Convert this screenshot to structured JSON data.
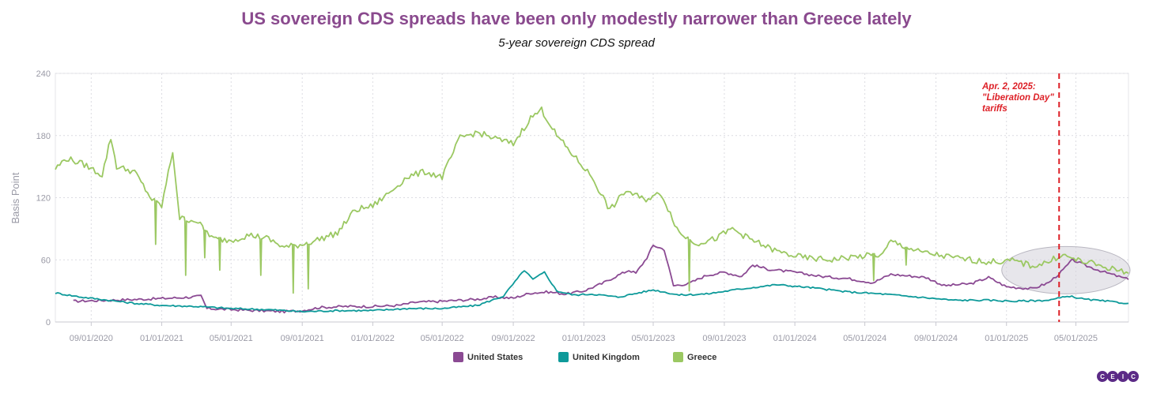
{
  "chart_data": {
    "type": "line",
    "title": "US sovereign CDS spreads have been only modestly narrower than Greece lately",
    "subtitle": "5-year sovereign CDS spread",
    "xlabel": "",
    "ylabel": "Basis Point",
    "ylim": [
      0,
      240
    ],
    "yticks": [
      0,
      60,
      120,
      180,
      240
    ],
    "xlim": [
      "2020-07-01",
      "2025-07-31"
    ],
    "xticks": [
      "09/01/2020",
      "01/01/2021",
      "05/01/2021",
      "09/01/2021",
      "01/01/2022",
      "05/01/2022",
      "09/01/2022",
      "01/01/2023",
      "05/01/2023",
      "09/01/2023",
      "01/01/2024",
      "05/01/2024",
      "09/01/2024",
      "01/01/2025",
      "05/01/2025"
    ],
    "grid": true,
    "legend_position": "bottom-center",
    "annotation": {
      "date": "2025-04-02",
      "lines": [
        "Apr. 2, 2025:",
        "\"Liberation Day\"",
        "tariffs"
      ],
      "color": "#dd1f26"
    },
    "series": [
      {
        "name": "United States",
        "color": "#8b4a93",
        "points": [
          [
            "2020-08-01",
            20
          ],
          [
            "2020-10-01",
            21
          ],
          [
            "2020-12-01",
            22
          ],
          [
            "2021-01-15",
            23
          ],
          [
            "2021-02-20",
            24
          ],
          [
            "2021-03-10",
            25
          ],
          [
            "2021-03-20",
            13
          ],
          [
            "2021-05-01",
            12
          ],
          [
            "2021-06-15",
            11
          ],
          [
            "2021-08-01",
            10
          ],
          [
            "2021-09-01",
            11
          ],
          [
            "2021-10-01",
            14
          ],
          [
            "2021-11-15",
            15
          ],
          [
            "2022-01-01",
            15
          ],
          [
            "2022-02-15",
            16
          ],
          [
            "2022-03-15",
            19
          ],
          [
            "2022-05-01",
            20
          ],
          [
            "2022-07-01",
            22
          ],
          [
            "2022-08-01",
            24
          ],
          [
            "2022-09-01",
            23
          ],
          [
            "2022-10-01",
            28
          ],
          [
            "2022-11-01",
            29
          ],
          [
            "2022-12-01",
            27
          ],
          [
            "2023-01-01",
            30
          ],
          [
            "2023-02-01",
            37
          ],
          [
            "2023-03-01",
            45
          ],
          [
            "2023-03-20",
            50
          ],
          [
            "2023-04-01",
            47
          ],
          [
            "2023-04-20",
            62
          ],
          [
            "2023-05-01",
            74
          ],
          [
            "2023-05-20",
            70
          ],
          [
            "2023-06-05",
            35
          ],
          [
            "2023-07-01",
            37
          ],
          [
            "2023-08-01",
            45
          ],
          [
            "2023-09-01",
            48
          ],
          [
            "2023-10-01",
            44
          ],
          [
            "2023-10-20",
            55
          ],
          [
            "2023-11-15",
            51
          ],
          [
            "2024-01-01",
            48
          ],
          [
            "2024-02-15",
            44
          ],
          [
            "2024-04-01",
            42
          ],
          [
            "2024-05-15",
            38
          ],
          [
            "2024-06-15",
            46
          ],
          [
            "2024-08-15",
            43
          ],
          [
            "2024-09-15",
            35
          ],
          [
            "2024-11-01",
            37
          ],
          [
            "2024-12-01",
            43
          ],
          [
            "2025-01-01",
            34
          ],
          [
            "2025-02-15",
            32
          ],
          [
            "2025-03-15",
            38
          ],
          [
            "2025-04-05",
            48
          ],
          [
            "2025-04-25",
            60
          ],
          [
            "2025-05-20",
            54
          ],
          [
            "2025-06-20",
            48
          ],
          [
            "2025-07-31",
            41
          ]
        ]
      },
      {
        "name": "United Kingdom",
        "color": "#0e9a9a",
        "points": [
          [
            "2020-07-01",
            28
          ],
          [
            "2020-08-15",
            24
          ],
          [
            "2020-10-01",
            21
          ],
          [
            "2020-11-15",
            18
          ],
          [
            "2021-01-01",
            16
          ],
          [
            "2021-03-01",
            15
          ],
          [
            "2021-05-01",
            13
          ],
          [
            "2021-07-01",
            12
          ],
          [
            "2021-09-01",
            10
          ],
          [
            "2021-11-01",
            11
          ],
          [
            "2022-01-01",
            11
          ],
          [
            "2022-03-01",
            13
          ],
          [
            "2022-05-01",
            13
          ],
          [
            "2022-07-01",
            16
          ],
          [
            "2022-08-15",
            25
          ],
          [
            "2022-09-20",
            50
          ],
          [
            "2022-10-05",
            41
          ],
          [
            "2022-10-25",
            48
          ],
          [
            "2022-11-15",
            30
          ],
          [
            "2022-12-15",
            26
          ],
          [
            "2023-01-15",
            27
          ],
          [
            "2023-03-01",
            24
          ],
          [
            "2023-05-01",
            31
          ],
          [
            "2023-06-15",
            26
          ],
          [
            "2023-08-01",
            27
          ],
          [
            "2023-10-01",
            32
          ],
          [
            "2023-12-01",
            36
          ],
          [
            "2024-02-01",
            33
          ],
          [
            "2024-04-01",
            29
          ],
          [
            "2024-06-01",
            27
          ],
          [
            "2024-08-01",
            24
          ],
          [
            "2024-10-01",
            21
          ],
          [
            "2024-12-01",
            21
          ],
          [
            "2025-01-15",
            20
          ],
          [
            "2025-03-15",
            21
          ],
          [
            "2025-04-20",
            25
          ],
          [
            "2025-05-15",
            22
          ],
          [
            "2025-07-31",
            18
          ]
        ]
      },
      {
        "name": "Greece",
        "color": "#9bc862",
        "points": [
          [
            "2020-07-01",
            148
          ],
          [
            "2020-07-20",
            158
          ],
          [
            "2020-08-20",
            152
          ],
          [
            "2020-09-20",
            142
          ],
          [
            "2020-10-05",
            178
          ],
          [
            "2020-10-15",
            150
          ],
          [
            "2020-11-15",
            145
          ],
          [
            "2020-12-15",
            118
          ],
          [
            "2021-01-01",
            112
          ],
          [
            "2021-01-20",
            165
          ],
          [
            "2021-02-01",
            100
          ],
          [
            "2021-03-01",
            98
          ],
          [
            "2021-04-01",
            80
          ],
          [
            "2021-05-01",
            79
          ],
          [
            "2021-06-01",
            84
          ],
          [
            "2021-07-01",
            81
          ],
          [
            "2021-08-01",
            72
          ],
          [
            "2021-09-01",
            75
          ],
          [
            "2021-10-01",
            80
          ],
          [
            "2021-11-01",
            86
          ],
          [
            "2021-12-01",
            108
          ],
          [
            "2022-01-01",
            112
          ],
          [
            "2022-02-01",
            126
          ],
          [
            "2022-03-01",
            140
          ],
          [
            "2022-04-01",
            145
          ],
          [
            "2022-05-01",
            140
          ],
          [
            "2022-06-01",
            178
          ],
          [
            "2022-07-01",
            183
          ],
          [
            "2022-08-01",
            177
          ],
          [
            "2022-09-01",
            172
          ],
          [
            "2022-10-01",
            197
          ],
          [
            "2022-10-20",
            205
          ],
          [
            "2022-11-15",
            180
          ],
          [
            "2022-12-15",
            160
          ],
          [
            "2023-01-15",
            140
          ],
          [
            "2023-02-15",
            108
          ],
          [
            "2023-03-15",
            127
          ],
          [
            "2023-04-15",
            118
          ],
          [
            "2023-05-15",
            124
          ],
          [
            "2023-06-15",
            86
          ],
          [
            "2023-07-15",
            76
          ],
          [
            "2023-08-15",
            80
          ],
          [
            "2023-09-15",
            90
          ],
          [
            "2023-10-15",
            80
          ],
          [
            "2023-12-01",
            68
          ],
          [
            "2024-01-15",
            62
          ],
          [
            "2024-03-01",
            60
          ],
          [
            "2024-04-15",
            63
          ],
          [
            "2024-06-01",
            65
          ],
          [
            "2024-06-15",
            78
          ],
          [
            "2024-08-01",
            68
          ],
          [
            "2024-10-01",
            62
          ],
          [
            "2024-12-01",
            58
          ],
          [
            "2025-01-15",
            59
          ],
          [
            "2025-02-15",
            54
          ],
          [
            "2025-03-15",
            58
          ],
          [
            "2025-04-05",
            65
          ],
          [
            "2025-05-01",
            60
          ],
          [
            "2025-06-01",
            56
          ],
          [
            "2025-07-31",
            47
          ]
        ],
        "spikes_down": [
          [
            "2020-12-20",
            75
          ],
          [
            "2021-02-10",
            45
          ],
          [
            "2021-03-15",
            62
          ],
          [
            "2021-04-10",
            50
          ],
          [
            "2021-06-20",
            45
          ],
          [
            "2021-08-15",
            28
          ],
          [
            "2021-09-10",
            32
          ],
          [
            "2023-07-01",
            30
          ],
          [
            "2024-05-15",
            40
          ],
          [
            "2024-07-10",
            55
          ]
        ]
      }
    ]
  }
}
